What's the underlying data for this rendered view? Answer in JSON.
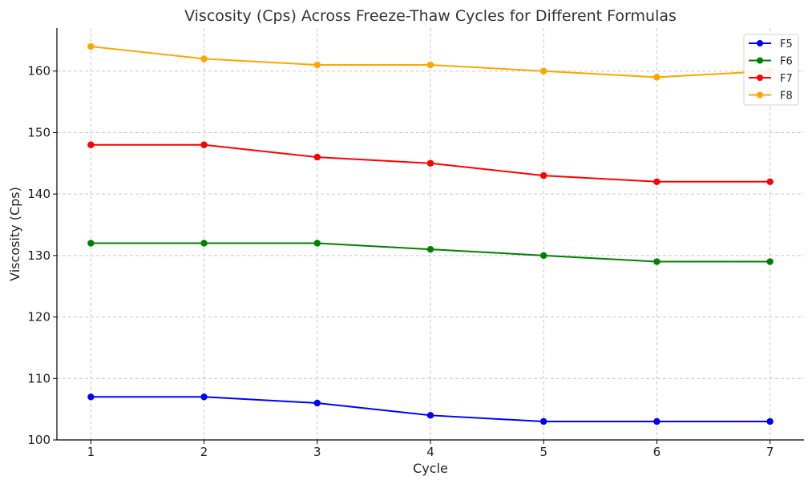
{
  "chart_data": {
    "type": "line",
    "title": "Viscosity (Cps) Across Freeze-Thaw Cycles for Different Formulas",
    "xlabel": "Cycle",
    "ylabel": "Viscosity (Cps)",
    "x": [
      1,
      2,
      3,
      4,
      5,
      6,
      7
    ],
    "xlim": [
      0.7,
      7.3
    ],
    "ylim": [
      100,
      167
    ],
    "yticks": [
      100,
      110,
      120,
      130,
      140,
      150,
      160
    ],
    "grid": true,
    "legend_position": "top-right",
    "series": [
      {
        "name": "F5",
        "color": "#0000ff",
        "values": [
          107,
          107,
          106,
          104,
          103,
          103,
          103
        ]
      },
      {
        "name": "F6",
        "color": "#008000",
        "values": [
          132,
          132,
          132,
          131,
          130,
          129,
          129
        ]
      },
      {
        "name": "F7",
        "color": "#ff0000",
        "values": [
          148,
          148,
          146,
          145,
          143,
          142,
          142
        ]
      },
      {
        "name": "F8",
        "color": "#ffa500",
        "values": [
          164,
          162,
          161,
          161,
          160,
          159,
          160
        ]
      }
    ]
  }
}
